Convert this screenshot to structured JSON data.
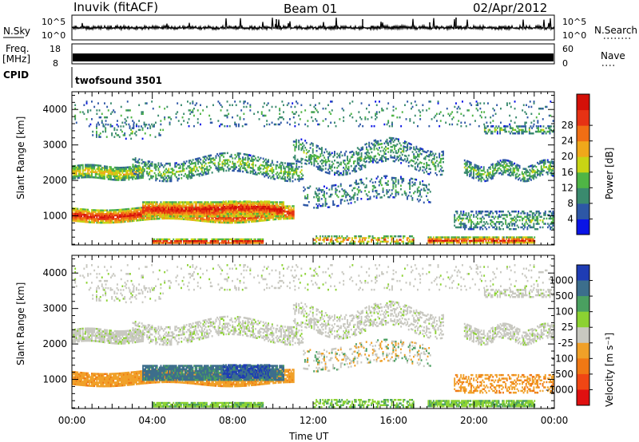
{
  "header": {
    "title": "Inuvik (fitACF)",
    "beam": "Beam 01",
    "date": "02/Apr/2012"
  },
  "panels": {
    "nsky_label": "N.Sky",
    "nsky_top_tick": "10^5",
    "nsky_bottom_tick": "10^0",
    "nsearch_label": "N.Search",
    "nsearch_top_tick": "10^5",
    "nsearch_bottom_tick": "10^0",
    "freq_label_1": "Freq.",
    "freq_label_2": "[MHz]",
    "freq_top_tick": "18",
    "freq_bottom_tick": "8",
    "nave_label": "Nave",
    "nave_top_tick": "60",
    "nave_bottom_tick": "0",
    "cpid_label": "CPID",
    "cpid_value": "twofsound 3501"
  },
  "chart_data": [
    {
      "type": "heatmap",
      "name": "power",
      "ylabel": "Slant Range [km]",
      "ylim": [
        180,
        4500
      ],
      "yticks": [
        "1000",
        "2000",
        "3000",
        "4000"
      ],
      "colorbar_label": "Power [dB]",
      "colorbar_ticks": [
        "4",
        "8",
        "12",
        "16",
        "20",
        "24",
        "28"
      ],
      "colorbar_colors": [
        "#0a14e6",
        "#2d57a6",
        "#3a8a6e",
        "#4fb545",
        "#c8d414",
        "#f0a81a",
        "#f06e14",
        "#e63214",
        "#d41008"
      ],
      "clim": [
        0,
        30
      ]
    },
    {
      "type": "heatmap",
      "name": "velocity",
      "ylabel": "Slant Range [km]",
      "xlabel": "Time UT",
      "ylim": [
        180,
        4500
      ],
      "yticks": [
        "1000",
        "2000",
        "3000",
        "4000"
      ],
      "xticks": [
        "00:00",
        "04:00",
        "08:00",
        "12:00",
        "16:00",
        "20:00",
        "00:00"
      ],
      "xlim_hours": [
        0,
        24
      ],
      "colorbar_label": "Velocity [m s⁻¹]",
      "colorbar_ticks": [
        "1000",
        "500",
        "100",
        "25",
        "-25",
        "-100",
        "-500",
        "-1000"
      ],
      "colorbar_colors": [
        "#1e3cb4",
        "#3c6e8c",
        "#4aa060",
        "#8cd232",
        "#c8c8c0",
        "#f0a028",
        "#f07814",
        "#f04614",
        "#e01010"
      ]
    }
  ]
}
